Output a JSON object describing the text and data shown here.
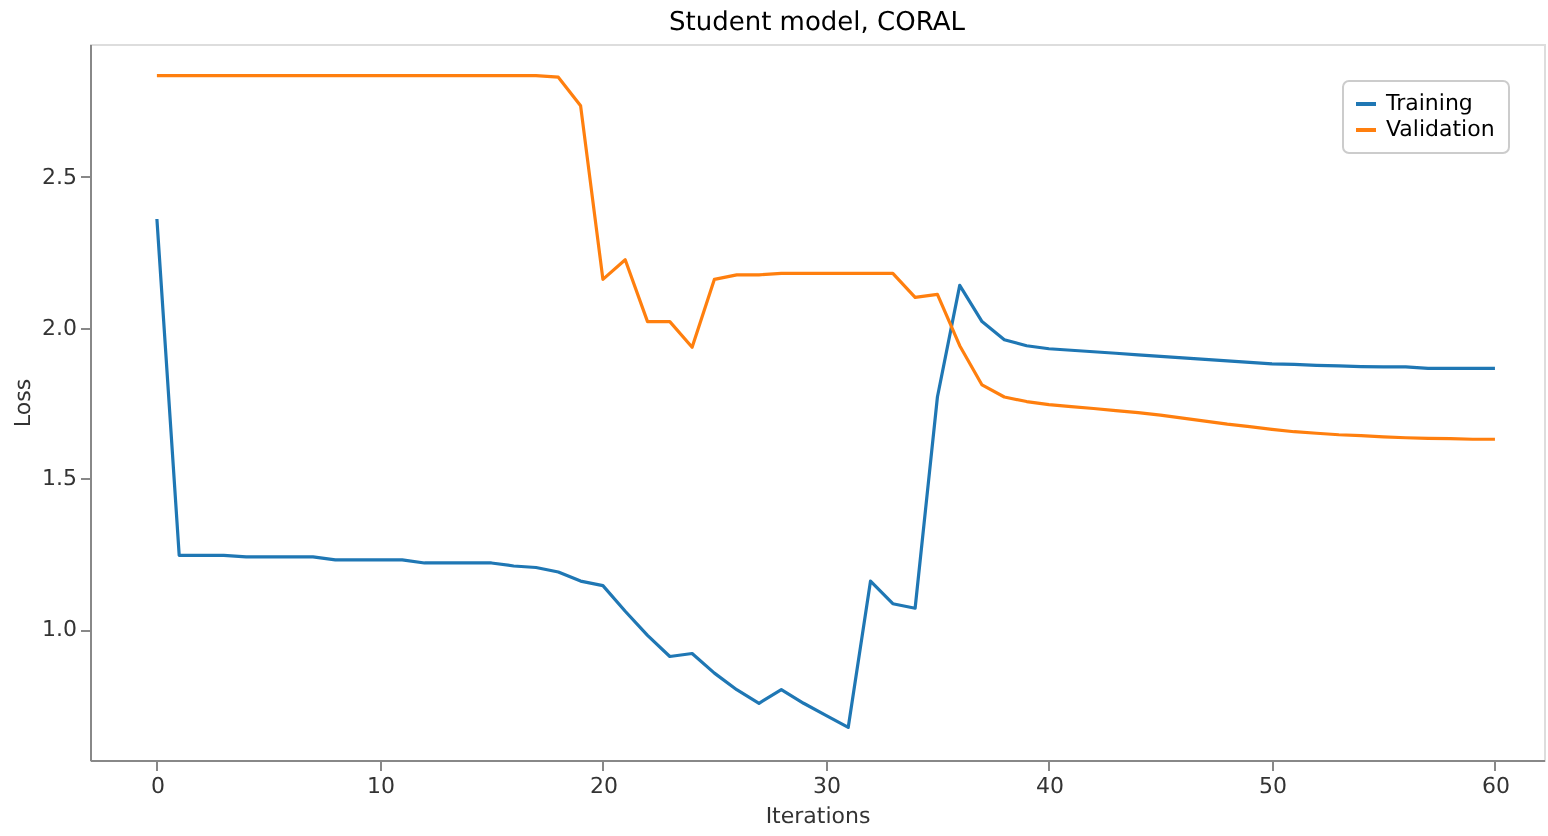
{
  "chart_data": {
    "type": "line",
    "title": "Student model, CORAL",
    "xlabel": "Iterations",
    "ylabel": "Loss",
    "x": [
      0,
      1,
      2,
      3,
      4,
      5,
      6,
      7,
      8,
      9,
      10,
      11,
      12,
      13,
      14,
      15,
      16,
      17,
      18,
      19,
      20,
      21,
      22,
      23,
      24,
      25,
      26,
      27,
      28,
      29,
      30,
      31,
      32,
      33,
      34,
      35,
      36,
      37,
      38,
      39,
      40,
      41,
      42,
      43,
      44,
      45,
      46,
      47,
      48,
      49,
      50,
      51,
      52,
      53,
      54,
      55,
      56,
      57,
      58,
      59,
      60
    ],
    "series": [
      {
        "name": "Training",
        "color": "#1f77b4",
        "values": [
          2.36,
          1.245,
          1.245,
          1.245,
          1.24,
          1.24,
          1.24,
          1.24,
          1.23,
          1.23,
          1.23,
          1.23,
          1.22,
          1.22,
          1.22,
          1.22,
          1.21,
          1.205,
          1.19,
          1.16,
          1.145,
          1.06,
          0.98,
          0.91,
          0.92,
          0.855,
          0.8,
          0.755,
          0.8,
          0.755,
          0.715,
          0.675,
          1.16,
          1.085,
          1.07,
          1.77,
          2.14,
          2.02,
          1.96,
          1.94,
          1.93,
          1.925,
          1.92,
          1.915,
          1.91,
          1.905,
          1.9,
          1.895,
          1.89,
          1.885,
          1.88,
          1.878,
          1.875,
          1.873,
          1.871,
          1.87,
          1.87,
          1.865,
          1.865,
          1.865,
          1.865
        ]
      },
      {
        "name": "Validation",
        "color": "#ff7f0e",
        "values": [
          2.835,
          2.835,
          2.835,
          2.835,
          2.835,
          2.835,
          2.835,
          2.835,
          2.835,
          2.835,
          2.835,
          2.835,
          2.835,
          2.835,
          2.835,
          2.835,
          2.835,
          2.835,
          2.83,
          2.735,
          2.16,
          2.225,
          2.02,
          2.02,
          1.935,
          2.16,
          2.175,
          2.175,
          2.18,
          2.18,
          2.18,
          2.18,
          2.18,
          2.18,
          2.1,
          2.11,
          1.94,
          1.81,
          1.77,
          1.755,
          1.745,
          1.738,
          1.732,
          1.725,
          1.718,
          1.71,
          1.7,
          1.69,
          1.68,
          1.672,
          1.663,
          1.655,
          1.65,
          1.645,
          1.642,
          1.638,
          1.635,
          1.633,
          1.632,
          1.63,
          1.63
        ]
      }
    ],
    "xlim": [
      -3,
      62.2
    ],
    "ylim": [
      0.567,
      2.94
    ],
    "xticks": [
      0,
      10,
      20,
      30,
      40,
      50,
      60
    ],
    "yticks": [
      {
        "value": 1,
        "label": "1.0"
      },
      1.5,
      {
        "value": 2,
        "label": "2.0"
      },
      2.5
    ],
    "grid": false,
    "legend": "top right",
    "marker": "none",
    "line_style": "solid"
  }
}
